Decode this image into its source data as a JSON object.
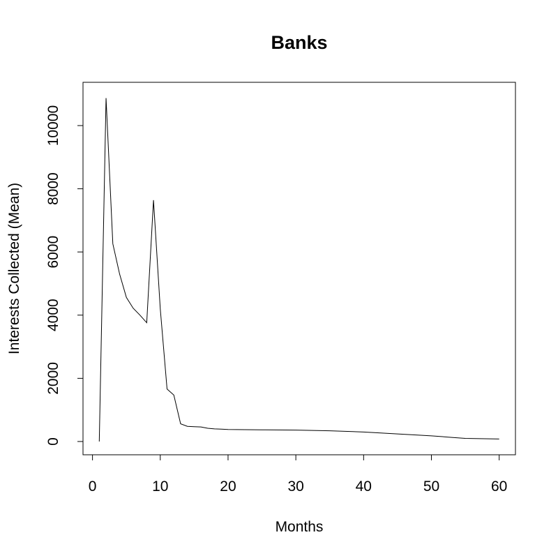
{
  "chart_data": {
    "type": "line",
    "title": "Banks",
    "xlabel": "Months",
    "ylabel": "Interests Collected (Mean)",
    "xlim": [
      -1.4,
      62.4
    ],
    "ylim": [
      -420,
      11370
    ],
    "x_ticks": [
      0,
      10,
      20,
      30,
      40,
      50,
      60
    ],
    "y_ticks": [
      0,
      2000,
      4000,
      6000,
      8000,
      10000
    ],
    "grid": false,
    "legend": "none",
    "series": [
      {
        "x": [
          1,
          2,
          3,
          4,
          5,
          6,
          7,
          8,
          9,
          10,
          11,
          12,
          13,
          14,
          15,
          16,
          17,
          18,
          19,
          20,
          25,
          30,
          35,
          40,
          45,
          50,
          53,
          55,
          60
        ],
        "y": [
          0,
          10870,
          6260,
          5300,
          4560,
          4220,
          4000,
          3760,
          7640,
          4200,
          1660,
          1470,
          560,
          480,
          470,
          460,
          420,
          400,
          390,
          380,
          370,
          360,
          340,
          300,
          240,
          180,
          130,
          100,
          80
        ]
      }
    ]
  }
}
